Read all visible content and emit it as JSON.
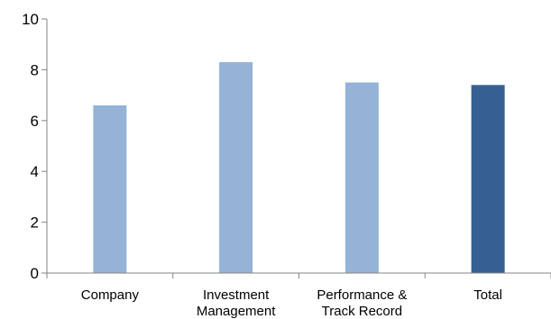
{
  "chart_data": {
    "type": "bar",
    "categories": [
      [
        "Company"
      ],
      [
        "Investment",
        "Management"
      ],
      [
        "Performance &",
        "Track Record"
      ],
      [
        "Total"
      ]
    ],
    "values": [
      6.6,
      8.3,
      7.5,
      7.4
    ],
    "bar_colors": [
      "#95b3d7",
      "#95b3d7",
      "#95b3d7",
      "#376092"
    ],
    "ylim": [
      0,
      10
    ],
    "yticks": [
      0,
      2,
      4,
      6,
      8,
      10
    ],
    "title": "",
    "xlabel": "",
    "ylabel": "",
    "grid": false,
    "legend": "none",
    "colors": {
      "axis": "#868686",
      "text": "#000000"
    }
  }
}
